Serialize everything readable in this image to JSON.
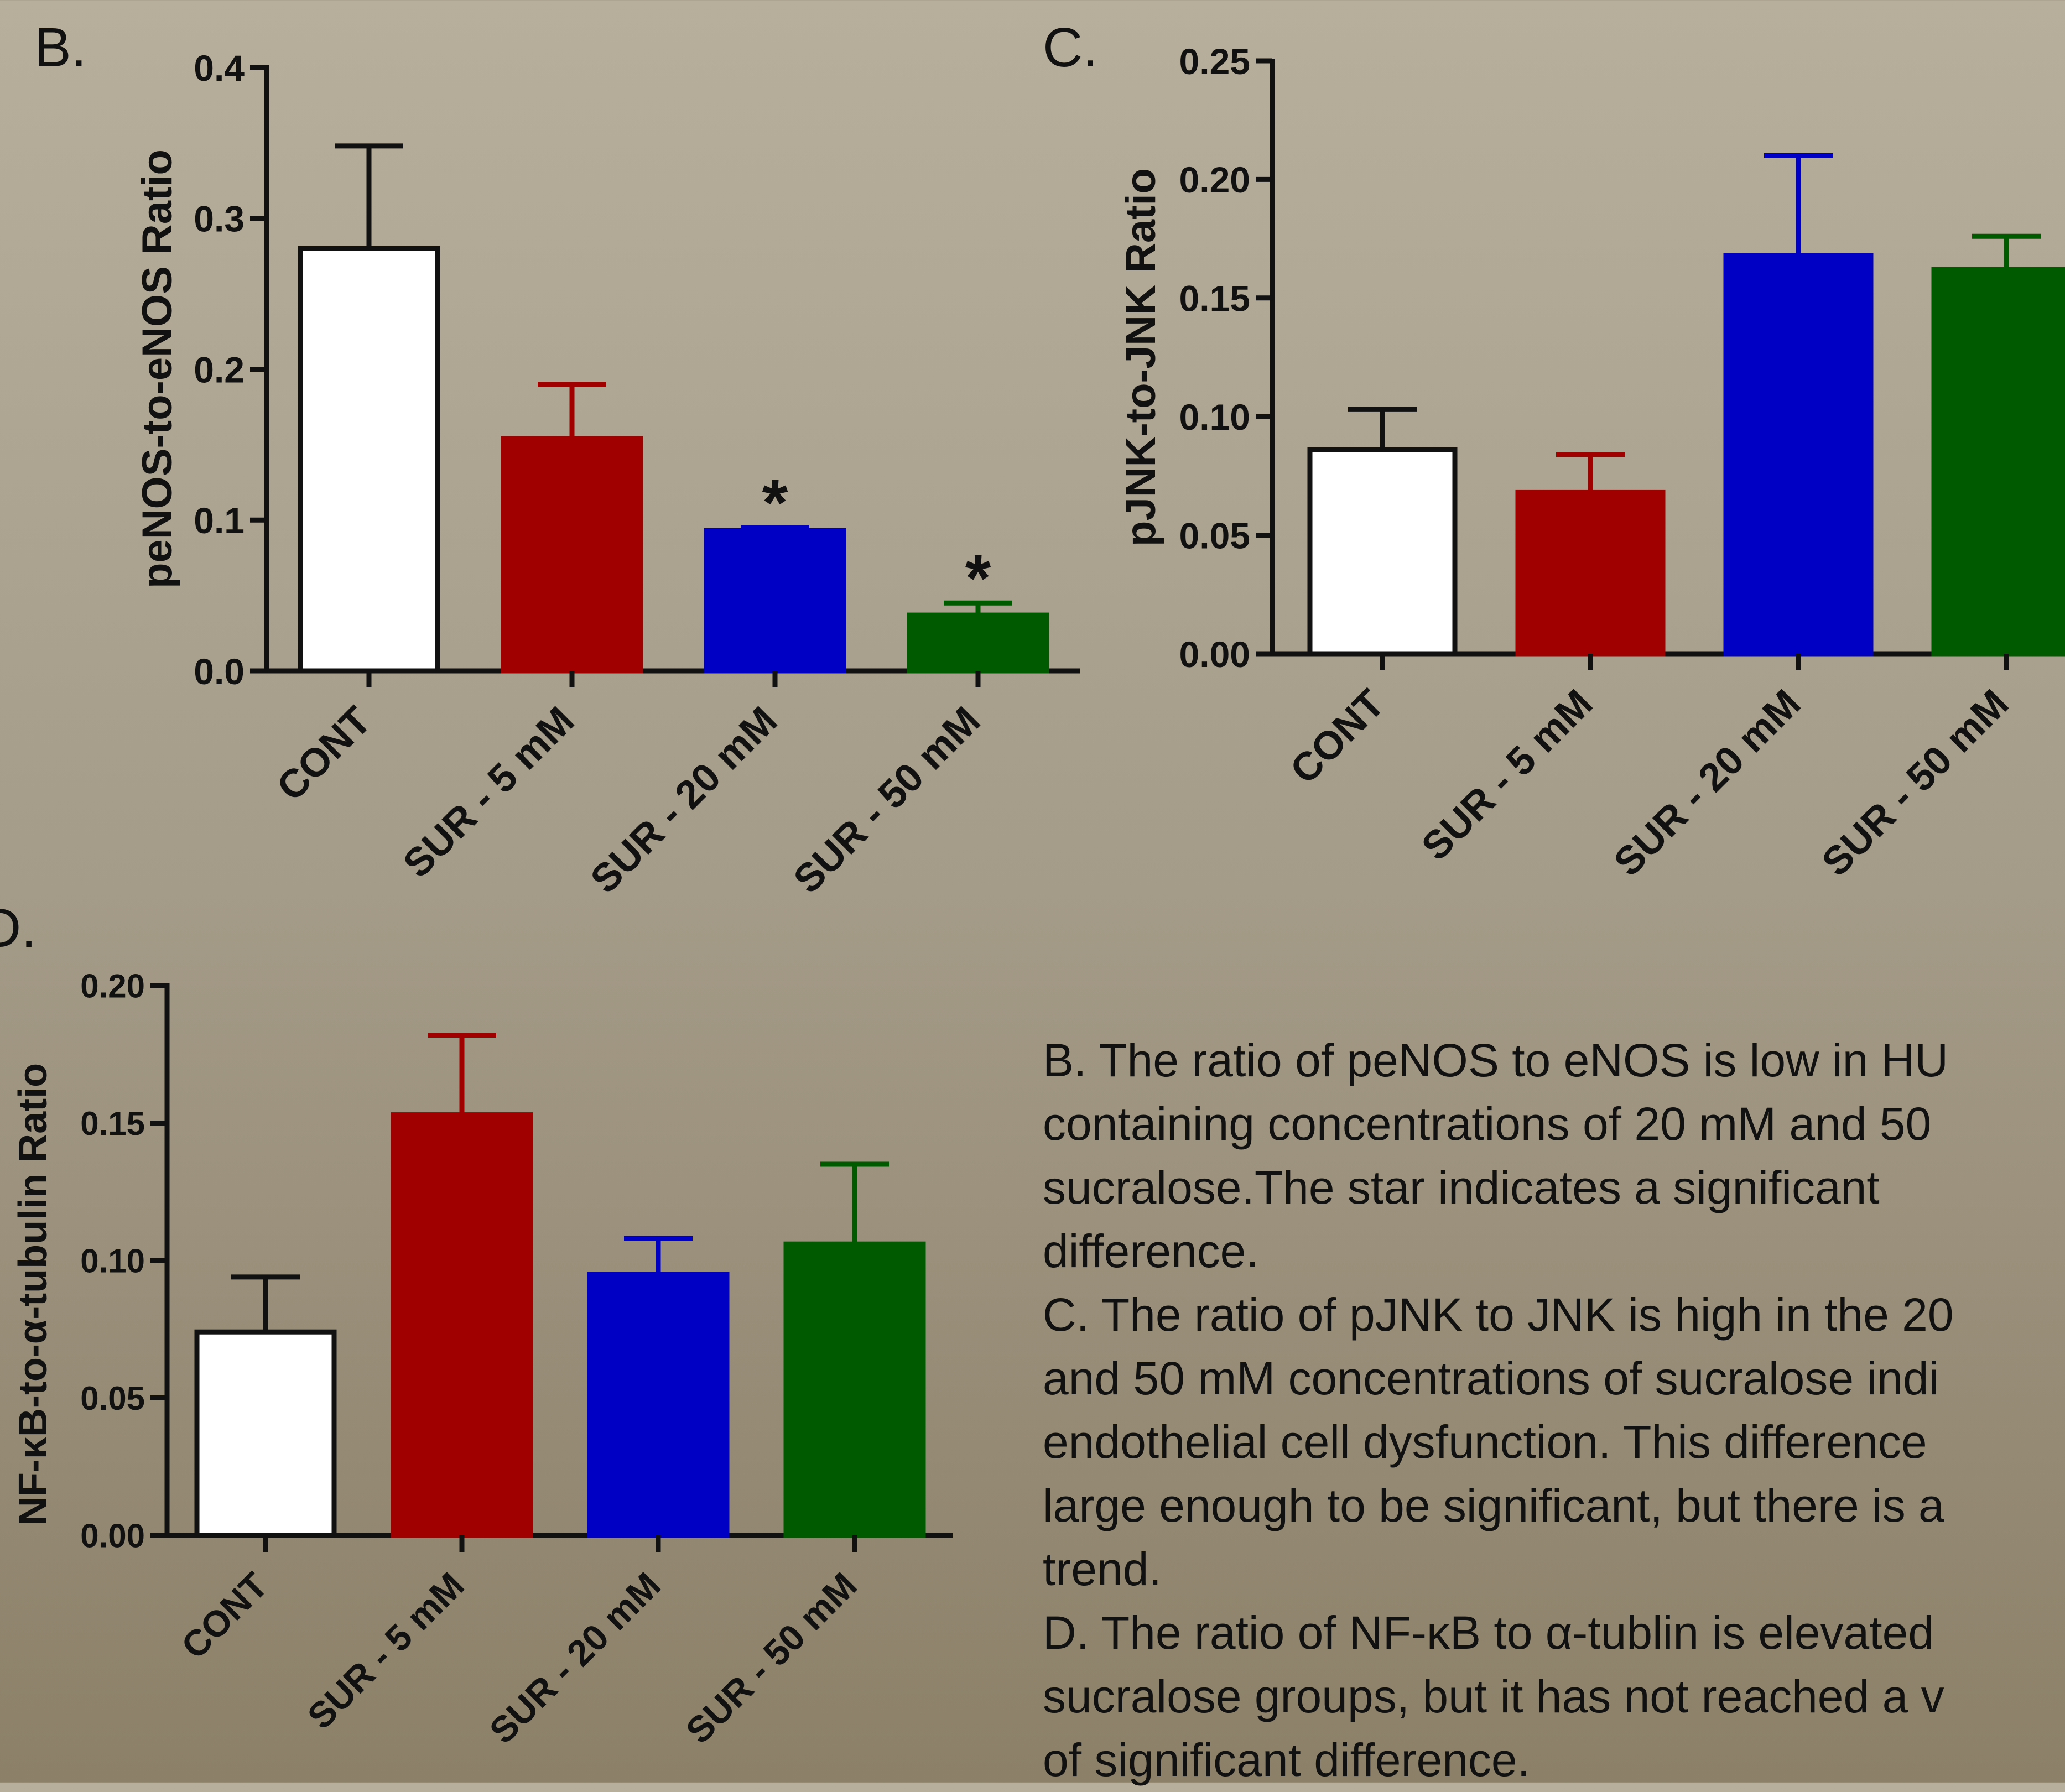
{
  "colors": {
    "cont_fill": "#ffffff",
    "sur5": "#a00000",
    "sur20": "#0000c4",
    "sur50": "#005a00",
    "axis": "#111111"
  },
  "chart_data": [
    {
      "type": "bar",
      "panel_label": "B.",
      "ylabel": "peNOS-to-eNOS Ratio",
      "xlabel": "",
      "categories": [
        "CONT",
        "SUR - 5 mM",
        "SUR - 20 mM",
        "SUR - 50 mM"
      ],
      "values": [
        0.28,
        0.154,
        0.093,
        0.037
      ],
      "errors": [
        0.068,
        0.036,
        0.002,
        0.008
      ],
      "significance": [
        "",
        "",
        "*",
        "*"
      ],
      "ylim": [
        0,
        0.4
      ],
      "yticks": [
        "0.0",
        "0.1",
        "0.2",
        "0.3",
        "0.4"
      ],
      "grid": false
    },
    {
      "type": "bar",
      "panel_label": "C.",
      "ylabel": "pJNK-to-JNK Ratio",
      "xlabel": "",
      "categories": [
        "CONT",
        "SUR - 5 mM",
        "SUR - 20 mM",
        "SUR - 50 mM"
      ],
      "values": [
        0.086,
        0.068,
        0.168,
        0.162
      ],
      "errors": [
        0.017,
        0.016,
        0.042,
        0.014
      ],
      "significance": [
        "",
        "",
        "",
        ""
      ],
      "ylim": [
        0,
        0.25
      ],
      "yticks": [
        "0.00",
        "0.05",
        "0.10",
        "0.15",
        "0.20",
        "0.25"
      ],
      "grid": false
    },
    {
      "type": "bar",
      "panel_label": "D.",
      "ylabel": "NF-κB-to-α-tubulin Ratio",
      "xlabel": "",
      "categories": [
        "CONT",
        "SUR - 5 mM",
        "SUR - 20 mM",
        "SUR - 50 mM"
      ],
      "values": [
        0.074,
        0.153,
        0.095,
        0.106
      ],
      "errors": [
        0.02,
        0.029,
        0.013,
        0.029
      ],
      "significance": [
        "",
        "",
        "",
        ""
      ],
      "ylim": [
        0,
        0.2
      ],
      "yticks": [
        "0.00",
        "0.05",
        "0.10",
        "0.15",
        "0.20"
      ],
      "grid": false
    }
  ],
  "caption": [
    "B. The ratio of peNOS to eNOS is low in HU",
    "containing concentrations of 20 mM and 50",
    "sucralose.The star indicates a significant",
    "difference.",
    "C. The ratio of pJNK to JNK is high in the 20",
    "and 50 mM concentrations of sucralose indi",
    "endothelial cell dysfunction. This difference",
    "large enough to be significant, but there is a",
    "trend.",
    "D. The ratio of NF-κB to α-tublin is elevated",
    "sucralose groups, but it has not reached a v",
    "of significant difference."
  ]
}
